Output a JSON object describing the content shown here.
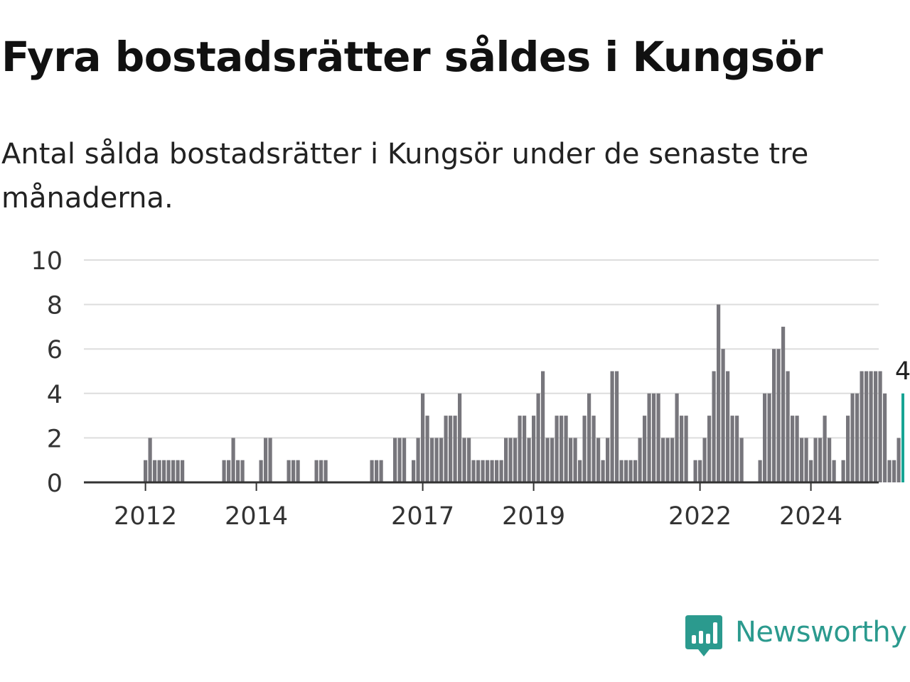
{
  "header": {
    "title": "Fyra bostadsrätter såldes i Kungsör",
    "subtitle": "Antal sålda bostadsrätter i Kungsör under de senaste tre månaderna."
  },
  "branding": {
    "name": "Newsworthy",
    "icon": "newsworthy-chart-bubble-icon",
    "color": "#2b9a8e"
  },
  "colors": {
    "bar": "#77767c",
    "highlight": "#17a494",
    "grid": "#dddddd",
    "axis": "#333333"
  },
  "chart_data": {
    "type": "bar",
    "x_start": "2011-01",
    "x_ticks": [
      "2012",
      "2014",
      "2017",
      "2019",
      "2022",
      "2024"
    ],
    "y_ticks": [
      0,
      2,
      4,
      6,
      8,
      10
    ],
    "ylim": [
      0,
      10
    ],
    "grid": true,
    "highlight_last": true,
    "highlight_label": "4",
    "values": [
      0,
      0,
      0,
      0,
      0,
      0,
      0,
      0,
      0,
      0,
      0,
      0,
      1,
      2,
      1,
      1,
      1,
      1,
      1,
      1,
      1,
      0,
      0,
      0,
      0,
      0,
      0,
      0,
      0,
      1,
      1,
      2,
      1,
      1,
      0,
      0,
      0,
      1,
      2,
      2,
      0,
      0,
      0,
      1,
      1,
      1,
      0,
      0,
      0,
      1,
      1,
      1,
      0,
      0,
      0,
      0,
      0,
      0,
      0,
      0,
      0,
      1,
      1,
      1,
      0,
      0,
      2,
      2,
      2,
      0,
      1,
      2,
      4,
      3,
      2,
      2,
      2,
      3,
      3,
      3,
      4,
      2,
      2,
      1,
      1,
      1,
      1,
      1,
      1,
      1,
      2,
      2,
      2,
      3,
      3,
      2,
      3,
      4,
      5,
      2,
      2,
      3,
      3,
      3,
      2,
      2,
      1,
      3,
      4,
      3,
      2,
      1,
      2,
      5,
      5,
      1,
      1,
      1,
      1,
      2,
      3,
      4,
      4,
      4,
      2,
      2,
      2,
      4,
      3,
      3,
      0,
      1,
      1,
      2,
      3,
      5,
      8,
      6,
      5,
      3,
      3,
      2,
      0,
      0,
      0,
      1,
      4,
      4,
      6,
      6,
      7,
      5,
      3,
      3,
      2,
      2,
      1,
      2,
      2,
      3,
      2,
      1,
      0,
      1,
      3,
      4,
      4,
      5,
      5,
      5,
      5,
      5,
      4,
      1,
      1,
      2,
      4
    ]
  }
}
